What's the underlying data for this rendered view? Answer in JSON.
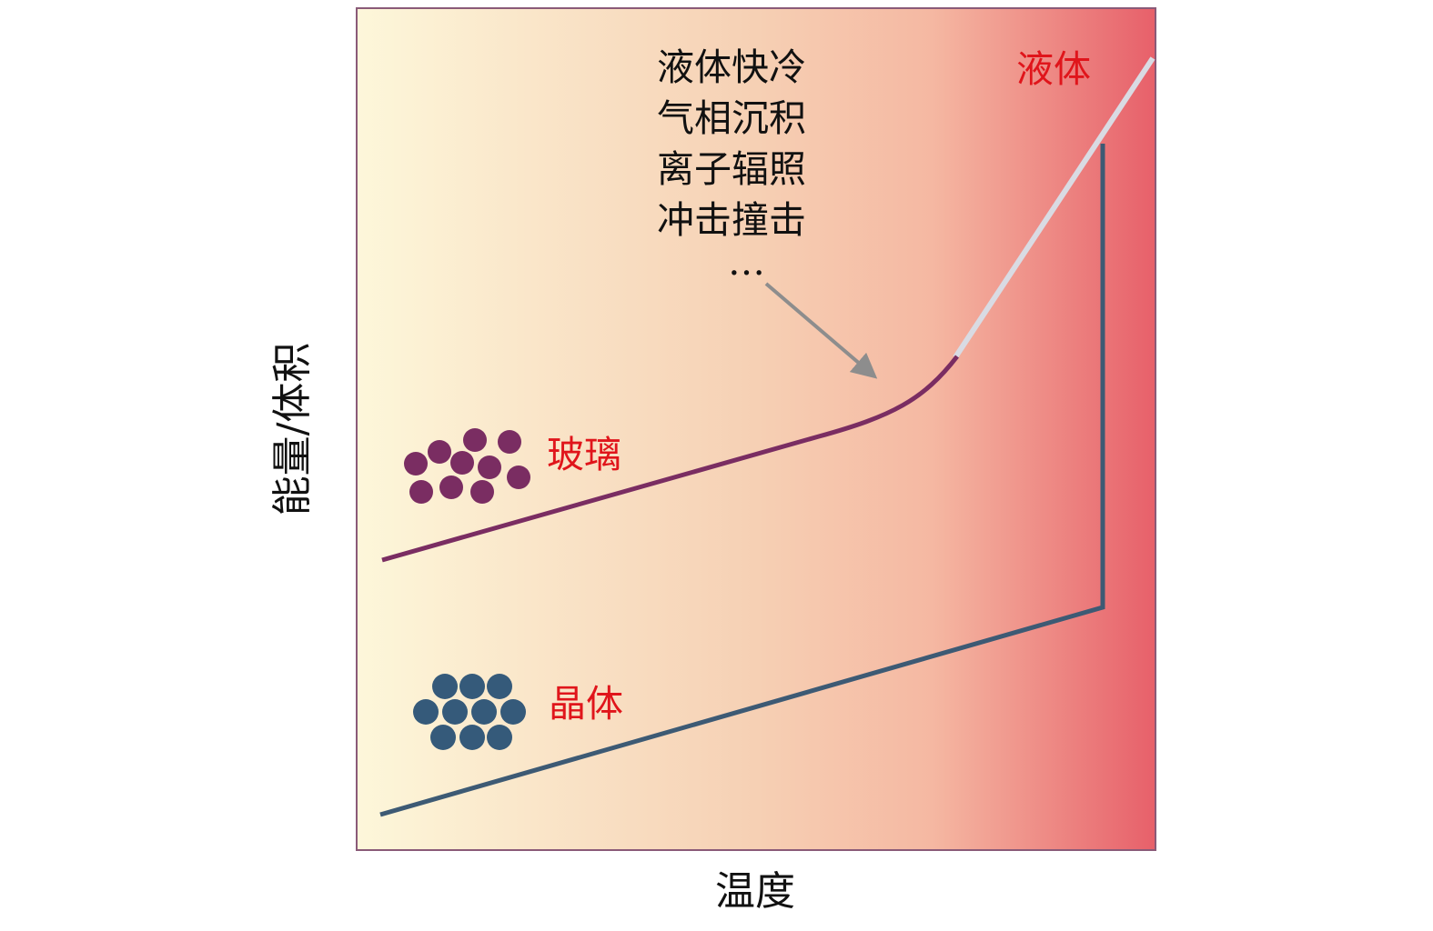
{
  "axes": {
    "x_label": "温度",
    "y_label": "能量/体积"
  },
  "phases": {
    "glass": "玻璃",
    "crystal": "晶体",
    "liquid": "液体"
  },
  "methods": {
    "items": [
      "液体快冷",
      "气相沉积",
      "离子辐照",
      "冲击撞击"
    ],
    "ellipsis": "…"
  },
  "colors": {
    "background_left": "#fdf7da",
    "background_mid": "#f5b8a2",
    "background_right": "#e7606a",
    "frame": "#8a5a78",
    "glass_curve": "#7a2d62",
    "crystal_curve": "#3d5a74",
    "liquid_curve": "#d9dbe3",
    "phase_label": "#e0151b",
    "glass_particles": "#7a2d62",
    "crystal_particles": "#355a7a",
    "arrow": "#8d8d8d"
  },
  "icons": {
    "glass_particles": "disordered-particle-cluster",
    "crystal_particles": "ordered-particle-lattice",
    "arrow": "arrow-pointing-to-glass-transition"
  }
}
